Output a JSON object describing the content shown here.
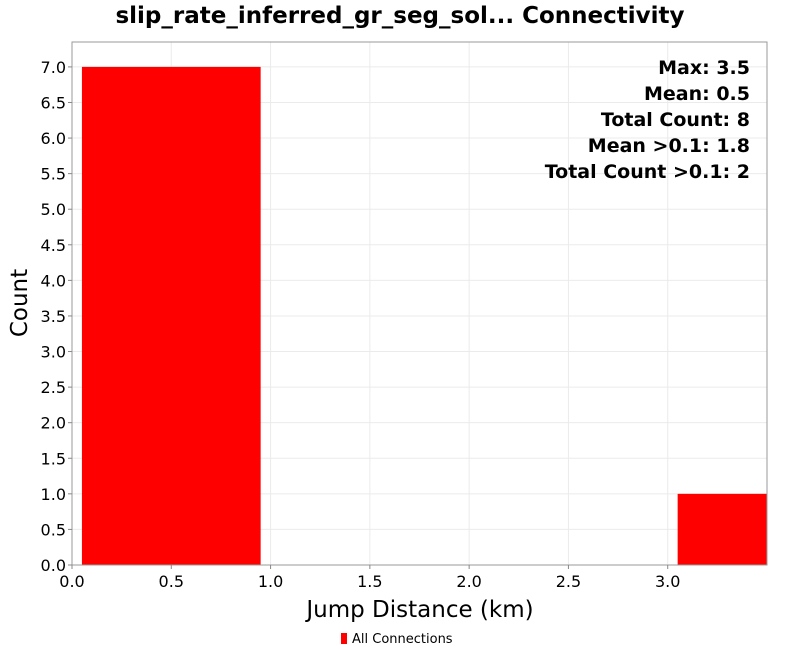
{
  "chart_data": {
    "type": "bar",
    "title": "slip_rate_inferred_gr_seg_sol... Connectivity",
    "xlabel": "Jump Distance (km)",
    "ylabel": "Count",
    "xlim": [
      0.0,
      3.5
    ],
    "ylim": [
      0.0,
      7.35
    ],
    "grid": true,
    "legend_position": "bottom-center",
    "x_ticks": [
      "0.0",
      "0.5",
      "1.0",
      "1.5",
      "2.0",
      "2.5",
      "3.0"
    ],
    "y_ticks": [
      "0.0",
      "0.5",
      "1.0",
      "1.5",
      "2.0",
      "2.5",
      "3.0",
      "3.5",
      "4.0",
      "4.5",
      "5.0",
      "5.5",
      "6.0",
      "6.5",
      "7.0"
    ],
    "series": [
      {
        "name": "All Connections",
        "color": "#ff0000",
        "bins": [
          {
            "x_start": 0.05,
            "x_end": 0.95,
            "count": 7
          },
          {
            "x_start": 3.05,
            "x_end": 3.95,
            "count": 1
          }
        ]
      }
    ],
    "annotations": [
      "Max: 3.5",
      "Mean: 0.5",
      "Total Count: 8",
      "Mean >0.1: 1.8",
      "Total Count >0.1: 2"
    ]
  }
}
